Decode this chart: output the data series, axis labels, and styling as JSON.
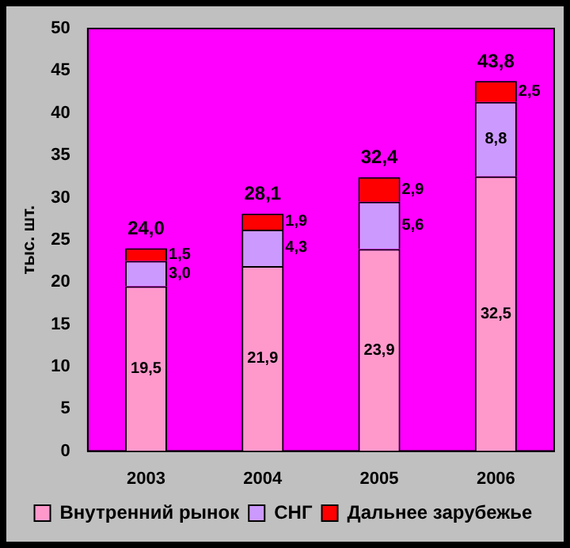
{
  "chart_data": {
    "type": "bar",
    "stacked": true,
    "ylabel": "тыс. шт.",
    "categories": [
      "2003",
      "2004",
      "2005",
      "2006"
    ],
    "series": [
      {
        "name": "Внутренний рынок",
        "color": "#ff99cc",
        "values": [
          19.5,
          21.9,
          23.9,
          32.5
        ],
        "value_labels": [
          "19,5",
          "21,9",
          "23,9",
          "32,5"
        ]
      },
      {
        "name": "СНГ",
        "color": "#cc99ff",
        "values": [
          3.0,
          4.3,
          5.6,
          8.8
        ],
        "value_labels": [
          "3,0",
          "4,3",
          "5,6",
          "8,8"
        ]
      },
      {
        "name": "Дальнее зарубежье",
        "color": "#ff0000",
        "values": [
          1.5,
          1.9,
          2.9,
          2.5
        ],
        "value_labels": [
          "1,5",
          "1,9",
          "2,9",
          "2,5"
        ]
      }
    ],
    "totals": [
      "24,0",
      "28,1",
      "32,4",
      "43,8"
    ],
    "ylim": [
      0,
      50
    ],
    "yticks": [
      0,
      5,
      10,
      15,
      20,
      25,
      30,
      35,
      40,
      45,
      50
    ],
    "grid": false,
    "legend": "bottom"
  }
}
